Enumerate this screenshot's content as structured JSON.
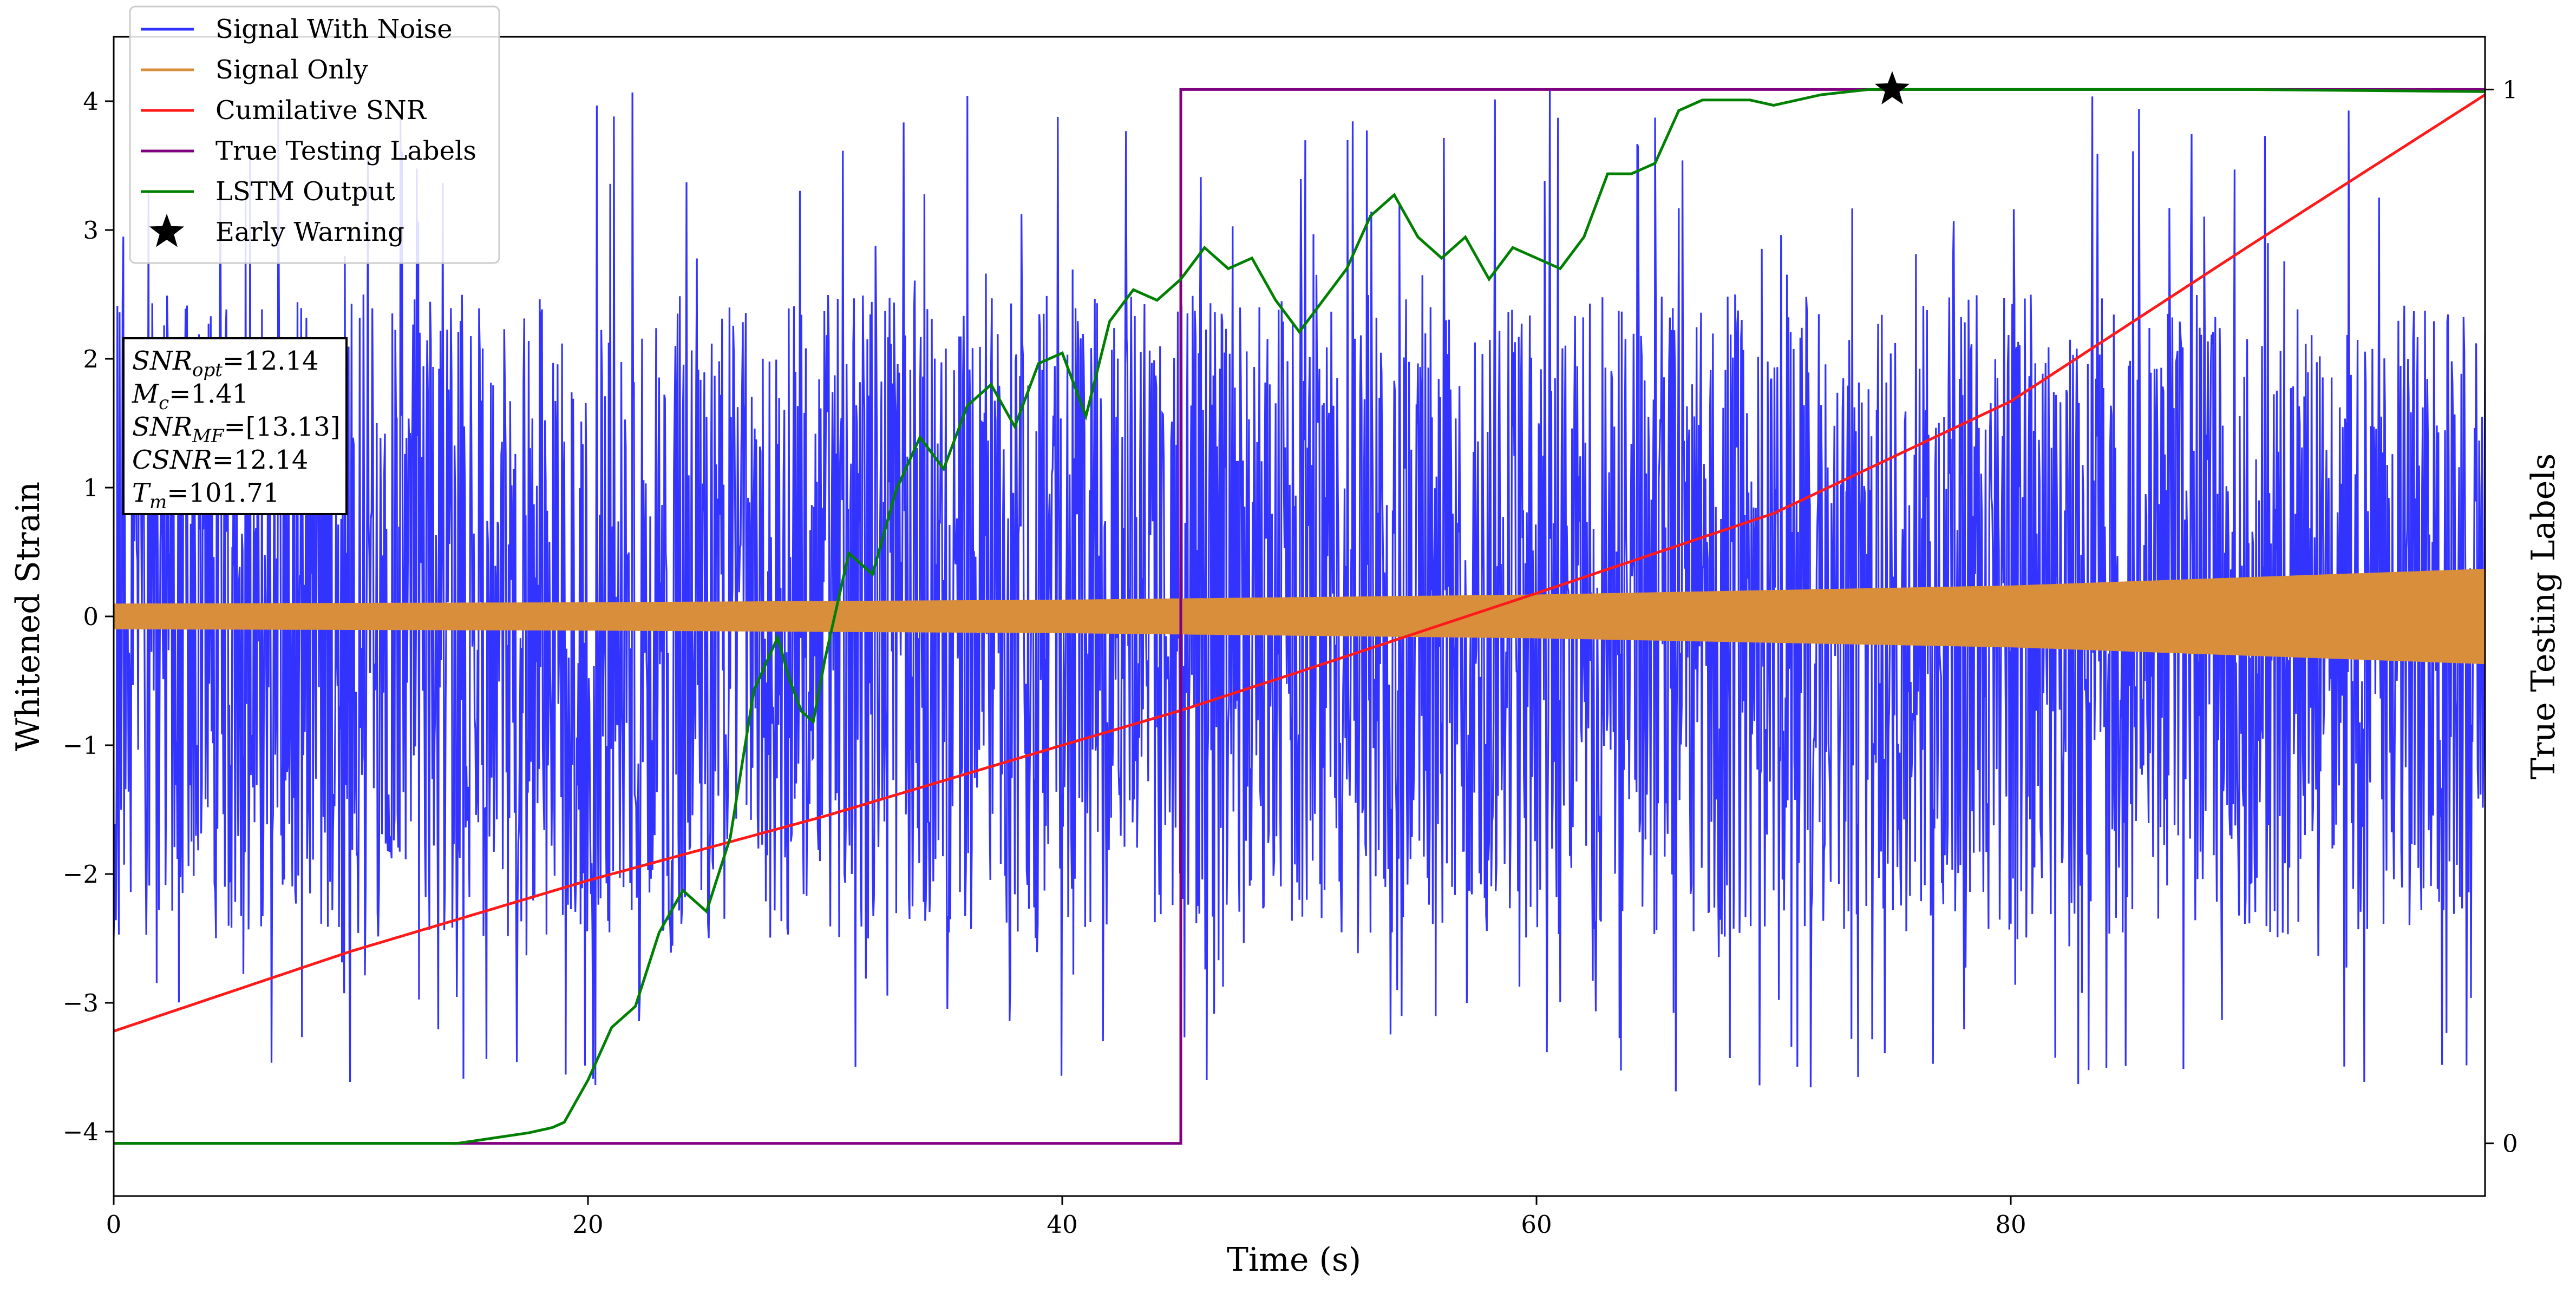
{
  "chart_data": {
    "type": "line",
    "title": "",
    "xlabel": "Time (s)",
    "ylabel": "Whitened Strain",
    "y2label": "True Testing Labels",
    "xlim": [
      0,
      100
    ],
    "ylim": [
      -4.5,
      4.5
    ],
    "y2lim": [
      -0.05,
      1.05
    ],
    "x_ticks": [
      0,
      20,
      40,
      60,
      80
    ],
    "x_tick_labels": [
      "0",
      "20",
      "40",
      "60",
      "80"
    ],
    "y_ticks": [
      -4,
      -3,
      -2,
      -1,
      0,
      1,
      2,
      3,
      4
    ],
    "y_tick_labels": [
      "−4",
      "−3",
      "−2",
      "−1",
      "0",
      "1",
      "2",
      "3",
      "4"
    ],
    "y2_ticks": [
      0,
      1
    ],
    "y2_tick_labels": [
      "0",
      "1"
    ],
    "grid": false,
    "legend_position": "top-left",
    "series": [
      {
        "name": "Signal With Noise",
        "color": "#3333ff",
        "axis": "left",
        "description_values": {
          "band_core": 1.4,
          "typical_peak": 2.5,
          "max_peak": 4.1,
          "min_peak": -3.7
        }
      },
      {
        "name": "Signal Only",
        "color": "#d88e3a",
        "axis": "left",
        "x": [
          0,
          20,
          40,
          60,
          80,
          100
        ],
        "amplitude": [
          0.1,
          0.11,
          0.13,
          0.17,
          0.24,
          0.37
        ]
      },
      {
        "name": "Cumilative SNR",
        "color": "#ff1a1a",
        "axis": "left",
        "x": [
          0,
          10,
          20,
          30,
          40,
          45,
          50,
          60,
          70,
          80,
          90,
          100
        ],
        "y": [
          -3.22,
          -2.6,
          -2.05,
          -1.55,
          -1.0,
          -0.73,
          -0.43,
          0.18,
          0.8,
          1.67,
          2.87,
          4.05
        ]
      },
      {
        "name": "True Testing Labels",
        "color": "#800080",
        "axis": "right",
        "x": [
          0,
          45,
          45,
          100
        ],
        "y": [
          0,
          0,
          1,
          1
        ]
      },
      {
        "name": "LSTM Output",
        "color": "#008000",
        "axis": "right",
        "x": [
          0,
          14.5,
          16,
          17.5,
          18.5,
          19,
          20,
          21,
          22,
          23,
          24,
          25,
          26,
          27,
          28,
          28.5,
          29,
          29.5,
          30,
          31,
          32,
          33,
          34,
          35,
          36,
          37,
          38,
          39,
          40,
          41,
          42,
          43,
          44,
          45,
          46,
          47,
          48,
          49,
          50,
          51,
          52,
          53,
          54,
          55,
          56,
          57,
          58,
          59,
          60,
          61,
          62,
          63,
          64,
          65,
          66,
          67,
          68,
          69,
          70,
          72,
          74,
          75,
          80,
          90,
          100
        ],
        "y": [
          0,
          0,
          0.005,
          0.01,
          0.015,
          0.02,
          0.06,
          0.11,
          0.13,
          0.2,
          0.24,
          0.22,
          0.29,
          0.43,
          0.48,
          0.44,
          0.41,
          0.4,
          0.46,
          0.56,
          0.54,
          0.62,
          0.67,
          0.64,
          0.7,
          0.72,
          0.68,
          0.74,
          0.75,
          0.69,
          0.78,
          0.81,
          0.8,
          0.82,
          0.85,
          0.83,
          0.84,
          0.8,
          0.77,
          0.8,
          0.83,
          0.88,
          0.9,
          0.86,
          0.84,
          0.86,
          0.82,
          0.85,
          0.84,
          0.83,
          0.86,
          0.92,
          0.92,
          0.93,
          0.98,
          0.99,
          0.99,
          0.99,
          0.985,
          0.995,
          1.0,
          1.0,
          1.0,
          1.0,
          0.998
        ]
      },
      {
        "name": "Early Warning",
        "color": "#000000",
        "axis": "right",
        "marker": "star",
        "x": [
          75
        ],
        "y": [
          1.0
        ]
      }
    ],
    "annotations": [
      {
        "latex_main": "SNR",
        "latex_sub": "opt",
        "value": "=12.14"
      },
      {
        "latex_main": "M",
        "latex_sub": "c",
        "value": "=1.41"
      },
      {
        "latex_main": "SNR",
        "latex_sub": "MF",
        "value": "=[13.13]"
      },
      {
        "latex_main": "CSNR",
        "latex_sub": "",
        "value": "=12.14"
      },
      {
        "latex_main": "T",
        "latex_sub": "m",
        "value": "=101.71"
      }
    ]
  }
}
